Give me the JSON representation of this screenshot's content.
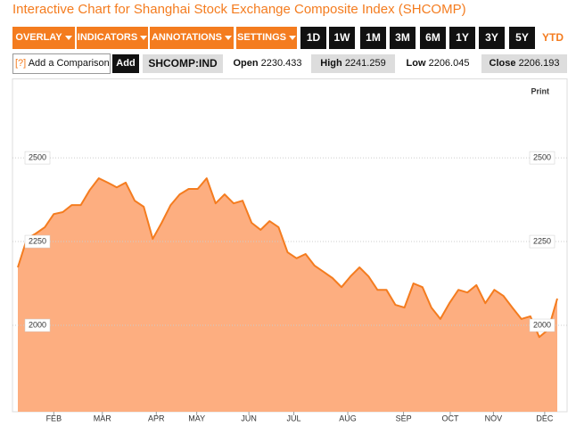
{
  "header": {
    "title": "Interactive Chart for Shanghai Stock Exchange Composite Index (SHCOMP)"
  },
  "toolbar": {
    "menus": [
      "OVERLAY",
      "INDICATORS",
      "ANNOTATIONS",
      "SETTINGS"
    ],
    "ranges": [
      "1D",
      "1W",
      "1M",
      "3M",
      "6M",
      "1Y",
      "3Y",
      "5Y",
      "YTD"
    ],
    "active_range": "YTD"
  },
  "comparison": {
    "help": "[?]",
    "placeholder": "Add a Comparison",
    "button": "Add"
  },
  "quote": {
    "symbol": "SHCOMP:IND",
    "fields": [
      {
        "label": "Open",
        "value": 2230.433
      },
      {
        "label": "High",
        "value": 2241.259
      },
      {
        "label": "Low",
        "value": 2206.045
      },
      {
        "label": "Close",
        "value": 2206.193
      }
    ]
  },
  "chart_data": {
    "type": "area",
    "print": "Print",
    "series": [
      {
        "name": "SHCOMP",
        "color": "#f47c1f",
        "fill": "#fdae80",
        "values": [
          2173,
          2258,
          2274,
          2293,
          2332,
          2338,
          2359,
          2359,
          2404,
          2439,
          2426,
          2412,
          2426,
          2372,
          2354,
          2258,
          2306,
          2359,
          2391,
          2407,
          2407,
          2439,
          2364,
          2391,
          2364,
          2372,
          2306,
          2285,
          2311,
          2293,
          2218,
          2200,
          2213,
          2178,
          2160,
          2141,
          2114,
          2146,
          2173,
          2146,
          2106,
          2106,
          2061,
          2053,
          2125,
          2114,
          2053,
          2019,
          2066,
          2106,
          2098,
          2120,
          2066,
          2106,
          2088,
          2053,
          2019,
          2027,
          1965,
          1987,
          2080
        ]
      }
    ],
    "xlim": [
      0,
      60
    ],
    "xticks": [
      {
        "value": 4,
        "label": "FEB"
      },
      {
        "value": 9.4,
        "label": "MAR"
      },
      {
        "value": 15.4,
        "label": "APR"
      },
      {
        "value": 19.9,
        "label": "MAY"
      },
      {
        "value": 25.7,
        "label": "JUN"
      },
      {
        "value": 30.7,
        "label": "JUL"
      },
      {
        "value": 36.7,
        "label": "AUG"
      },
      {
        "value": 42.9,
        "label": "SEP"
      },
      {
        "value": 48.1,
        "label": "OCT"
      },
      {
        "value": 52.9,
        "label": "NOV"
      },
      {
        "value": 58.6,
        "label": "DEC"
      }
    ],
    "ylim": [
      1742,
      2737
    ],
    "yticks": [
      2000,
      2250,
      2500
    ],
    "grid": true
  }
}
